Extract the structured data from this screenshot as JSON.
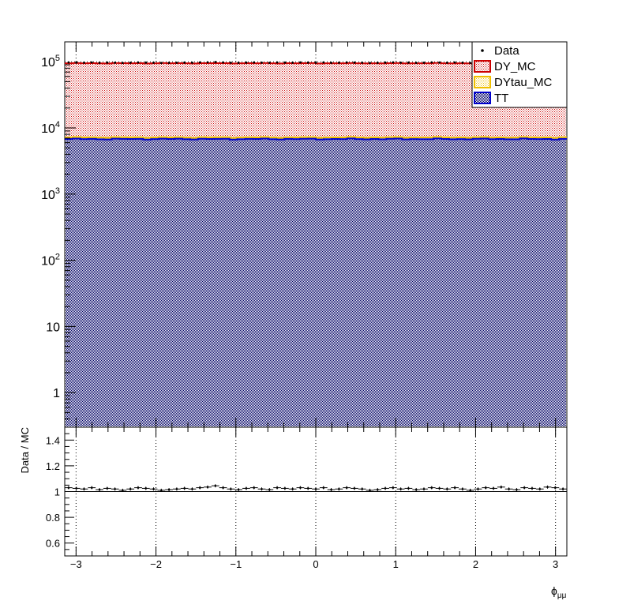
{
  "chart_data": {
    "type": "histogram",
    "x_axis": {
      "label": "ϕ",
      "label_sub": "μμ",
      "range": [
        -3.1416,
        3.1416
      ],
      "ticks": [
        -3,
        -2,
        -1,
        0,
        1,
        2,
        3
      ],
      "tick_labels": [
        "−3",
        "−2",
        "−1",
        "0",
        "1",
        "2",
        "3"
      ]
    },
    "upper_panel": {
      "y_scale": "log",
      "y_range": [
        0.3,
        200000
      ],
      "major_ticks": [
        1,
        10,
        100,
        1000,
        10000,
        100000
      ],
      "tick_labels": [
        {
          "base": "1",
          "exp": ""
        },
        {
          "base": "10",
          "exp": ""
        },
        {
          "base": "10",
          "exp": "2"
        },
        {
          "base": "10",
          "exp": "3"
        },
        {
          "base": "10",
          "exp": "4"
        },
        {
          "base": "10",
          "exp": "5"
        }
      ],
      "grid": true,
      "stack": [
        {
          "name": "TT",
          "level": 6800,
          "color": "#1a1aa6",
          "line": "#0000cc"
        },
        {
          "name": "DYtau_MC",
          "level": 7200,
          "color": "#f5e000",
          "line": "#f0c000"
        },
        {
          "name": "DY_MC",
          "level": 95000,
          "color": "#e06060",
          "line": "#cc0000"
        }
      ],
      "data_level": 97000
    },
    "lower_panel": {
      "y_label": "Data / MC",
      "y_range": [
        0.5,
        1.5
      ],
      "ticks": [
        0.6,
        0.8,
        1,
        1.2,
        1.4
      ],
      "tick_labels": [
        "0.6",
        "0.8",
        "1",
        "1.2",
        "1.4"
      ],
      "reference": 1.0,
      "ratio": [
        1.03,
        1.025,
        1.02,
        1.03,
        1.015,
        1.025,
        1.02,
        1.01,
        1.02,
        1.03,
        1.025,
        1.02,
        1.01,
        1.015,
        1.02,
        1.025,
        1.02,
        1.03,
        1.035,
        1.045,
        1.03,
        1.02,
        1.015,
        1.025,
        1.03,
        1.02,
        1.015,
        1.03,
        1.025,
        1.02,
        1.03,
        1.025,
        1.02,
        1.03,
        1.015,
        1.02,
        1.03,
        1.025,
        1.02,
        1.01,
        1.015,
        1.025,
        1.03,
        1.02,
        1.025,
        1.015,
        1.02,
        1.03,
        1.025,
        1.02,
        1.03,
        1.02,
        1.01,
        1.02,
        1.03,
        1.025,
        1.035,
        1.02,
        1.015,
        1.03,
        1.025,
        1.02,
        1.035,
        1.03,
        1.02
      ]
    },
    "legend": {
      "placement": "top-right",
      "entries": [
        {
          "name": "Data",
          "marker": "point",
          "color": "#000000"
        },
        {
          "name": "DY_MC",
          "marker": "box",
          "color": "#cc0000"
        },
        {
          "name": "DYtau_MC",
          "marker": "box",
          "color": "#f0c000"
        },
        {
          "name": "TT",
          "marker": "box",
          "color": "#0000cc"
        }
      ]
    }
  }
}
